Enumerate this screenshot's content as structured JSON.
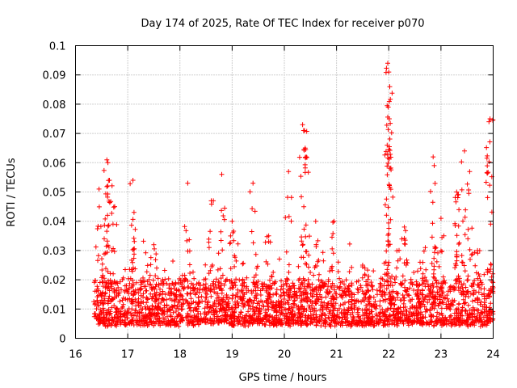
{
  "chart_data": {
    "type": "scatter",
    "title": "Day 174 of 2025, Rate Of TEC Index for receiver p070",
    "xlabel": "GPS time / hours",
    "ylabel": "ROTI / TECUs",
    "xlim": [
      16,
      24
    ],
    "ylim": [
      0,
      0.1
    ],
    "grid": true,
    "marker": "plus",
    "color": "#ff0000",
    "xticks": [
      "16",
      "17",
      "18",
      "19",
      "20",
      "21",
      "22",
      "23",
      "24"
    ],
    "yticks": [
      "0",
      "0.01",
      "0.02",
      "0.03",
      "0.04",
      "0.05",
      "0.06",
      "0.07",
      "0.08",
      "0.09",
      "0.1"
    ],
    "series": [
      {
        "name": "ROTI",
        "baseline": {
          "x_start": 16.35,
          "x_end": 24.0,
          "typical_range": [
            0.005,
            0.02
          ]
        },
        "notable_points": [
          {
            "x": 16.6,
            "y": 0.061
          },
          {
            "x": 16.62,
            "y": 0.06
          },
          {
            "x": 16.65,
            "y": 0.054
          },
          {
            "x": 16.75,
            "y": 0.045
          },
          {
            "x": 17.1,
            "y": 0.054
          },
          {
            "x": 17.12,
            "y": 0.043
          },
          {
            "x": 18.15,
            "y": 0.053
          },
          {
            "x": 18.8,
            "y": 0.056
          },
          {
            "x": 19.4,
            "y": 0.053
          },
          {
            "x": 20.08,
            "y": 0.057
          },
          {
            "x": 20.35,
            "y": 0.073
          },
          {
            "x": 20.37,
            "y": 0.071
          },
          {
            "x": 20.4,
            "y": 0.065
          },
          {
            "x": 20.42,
            "y": 0.062
          },
          {
            "x": 21.98,
            "y": 0.094
          },
          {
            "x": 22.0,
            "y": 0.091
          },
          {
            "x": 22.02,
            "y": 0.086
          },
          {
            "x": 21.99,
            "y": 0.079
          },
          {
            "x": 22.01,
            "y": 0.075
          },
          {
            "x": 21.97,
            "y": 0.066
          },
          {
            "x": 22.85,
            "y": 0.062
          },
          {
            "x": 22.87,
            "y": 0.059
          },
          {
            "x": 23.45,
            "y": 0.064
          },
          {
            "x": 23.55,
            "y": 0.057
          },
          {
            "x": 23.3,
            "y": 0.05
          },
          {
            "x": 23.32,
            "y": 0.049
          },
          {
            "x": 23.92,
            "y": 0.074
          },
          {
            "x": 23.94,
            "y": 0.075
          },
          {
            "x": 23.95,
            "y": 0.039
          },
          {
            "x": 16.45,
            "y": 0.051
          },
          {
            "x": 16.55,
            "y": 0.034
          },
          {
            "x": 17.5,
            "y": 0.032
          },
          {
            "x": 18.6,
            "y": 0.047
          },
          {
            "x": 19.0,
            "y": 0.04
          },
          {
            "x": 19.7,
            "y": 0.035
          },
          {
            "x": 20.6,
            "y": 0.04
          },
          {
            "x": 20.95,
            "y": 0.04
          },
          {
            "x": 21.5,
            "y": 0.025
          },
          {
            "x": 22.3,
            "y": 0.038
          },
          {
            "x": 22.6,
            "y": 0.026
          },
          {
            "x": 23.0,
            "y": 0.041
          },
          {
            "x": 23.7,
            "y": 0.03
          }
        ]
      }
    ]
  }
}
